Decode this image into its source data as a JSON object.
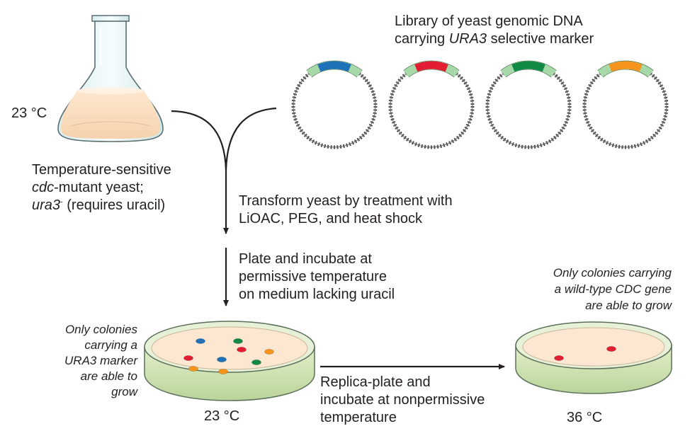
{
  "library": {
    "line1": "Library of yeast genomic DNA",
    "line2_prefix": "carrying ",
    "marker": "URA3",
    "line2_suffix": " selective marker"
  },
  "flask": {
    "temperature": "23 °C"
  },
  "strain": {
    "line1": "Temperature-sensitive",
    "cdc": "cdc",
    "line2_rest": "-mutant yeast;",
    "ura3": "ura3",
    "sup": "-",
    "line3_rest": " (requires uracil)"
  },
  "steps": {
    "transform_line1": "Transform yeast by treatment with",
    "transform_line2": "LiOAC, PEG, and heat shock",
    "plate_line1": "Plate and incubate at",
    "plate_line2": "permissive temperature",
    "plate_line3": "on medium lacking uracil",
    "replica_line1": "Replica-plate and",
    "replica_line2": "incubate at nonpermissive",
    "replica_line3": "temperature"
  },
  "dish_left": {
    "note_line1": "Only colonies",
    "note_line2": "carrying a",
    "note_line3": "URA3 marker",
    "note_line4": "are able to",
    "note_line5": "grow",
    "temperature": "23 °C"
  },
  "dish_right": {
    "note_line1": "Only colonies carrying",
    "note_line2": "a wild-type CDC gene",
    "note_line3": "are able to grow",
    "temperature": "36 °C"
  },
  "colors": {
    "insert_blue": "#1f72b8",
    "insert_red": "#e31e32",
    "insert_green": "#108a45",
    "insert_orange": "#f7941d",
    "marker_green": "#a6d8a8",
    "culture": "#fbe0c4",
    "agar": "#fbe7d2",
    "arrow": "#231f20"
  },
  "icons": {
    "flask": "erlenmeyer-flask-icon",
    "plasmid": "plasmid-icon",
    "dish": "petri-dish-icon"
  }
}
